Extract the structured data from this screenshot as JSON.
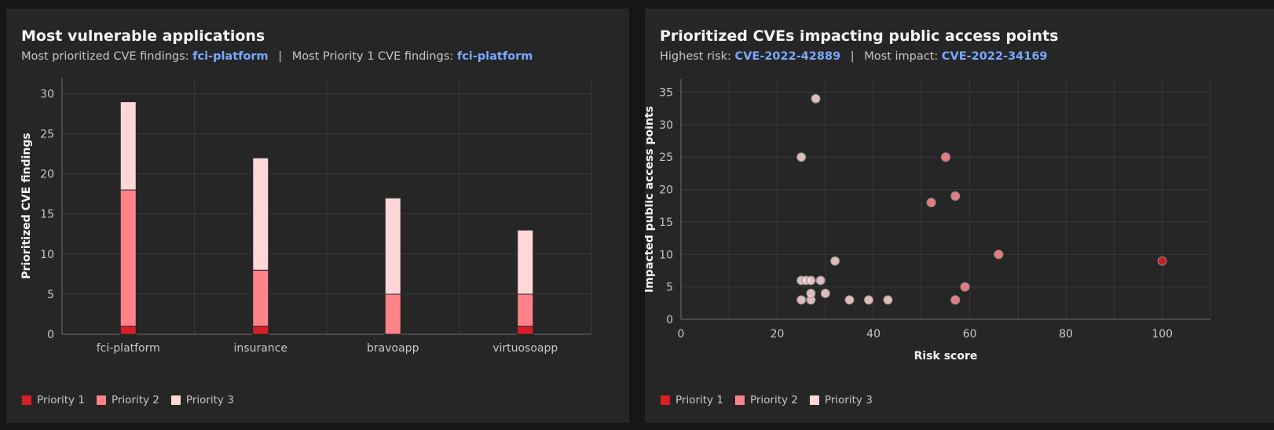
{
  "colors": {
    "priority_1": "#da1e28",
    "priority_2": "#ff8389",
    "priority_3": "#ffd7d9",
    "accent_link": "#78a9ff",
    "gridline": "#393939",
    "axis_line": "#6f6f6f"
  },
  "left_panel": {
    "title": "Most vulnerable applications",
    "subtitle": {
      "label1": "Most prioritized CVE findings:",
      "value1": "fci-platform",
      "separator": "|",
      "label2": "Most Priority 1 CVE findings:",
      "value2": "fci-platform"
    },
    "legend": [
      {
        "label": "Priority 1"
      },
      {
        "label": "Priority 2"
      },
      {
        "label": "Priority 3"
      }
    ]
  },
  "right_panel": {
    "title": "Prioritized CVEs impacting public access points",
    "subtitle": {
      "label1": "Highest risk:",
      "value1": "CVE-2022-42889",
      "separator": "|",
      "label2": "Most impact:",
      "value2": "CVE-2022-34169"
    },
    "legend": [
      {
        "label": "Priority 1"
      },
      {
        "label": "Priority 2"
      },
      {
        "label": "Priority 3"
      }
    ]
  },
  "chart_data": [
    {
      "type": "bar",
      "stacked": true,
      "title": "Most vulnerable applications",
      "xlabel": "",
      "ylabel": "Prioritized CVE findings",
      "ylim": [
        0,
        32
      ],
      "yticks": [
        0,
        5,
        10,
        15,
        20,
        25,
        30
      ],
      "categories": [
        "fci-platform",
        "insurance",
        "bravoapp",
        "virtuosoapp"
      ],
      "series": [
        {
          "name": "Priority 1",
          "values": [
            1,
            1,
            0,
            1
          ]
        },
        {
          "name": "Priority 2",
          "values": [
            17,
            7,
            5,
            4
          ]
        },
        {
          "name": "Priority 3",
          "values": [
            11,
            14,
            12,
            8
          ]
        }
      ],
      "grid": true,
      "legend": "bottom-left"
    },
    {
      "type": "scatter",
      "title": "Prioritized CVEs impacting public access points",
      "xlabel": "Risk score",
      "ylabel": "Impacted public access points",
      "xlim": [
        0,
        110
      ],
      "ylim": [
        0,
        37
      ],
      "xticks": [
        0,
        20,
        40,
        60,
        80,
        100
      ],
      "yticks": [
        0,
        5,
        10,
        15,
        20,
        25,
        30,
        35
      ],
      "grid": true,
      "legend": "bottom-left",
      "series": [
        {
          "name": "Priority 1",
          "points": [
            [
              100,
              9
            ]
          ]
        },
        {
          "name": "Priority 2",
          "points": [
            [
              52,
              18
            ],
            [
              55,
              25
            ],
            [
              57,
              19
            ],
            [
              57,
              3
            ],
            [
              59,
              5
            ],
            [
              66,
              10
            ]
          ]
        },
        {
          "name": "Priority 3",
          "points": [
            [
              25,
              25
            ],
            [
              28,
              34
            ],
            [
              25,
              6
            ],
            [
              26,
              6
            ],
            [
              27,
              6
            ],
            [
              29,
              6
            ],
            [
              25,
              3
            ],
            [
              27,
              3
            ],
            [
              27,
              4
            ],
            [
              30,
              4
            ],
            [
              32,
              9
            ],
            [
              35,
              3
            ],
            [
              39,
              3
            ],
            [
              43,
              3
            ]
          ]
        }
      ]
    }
  ]
}
